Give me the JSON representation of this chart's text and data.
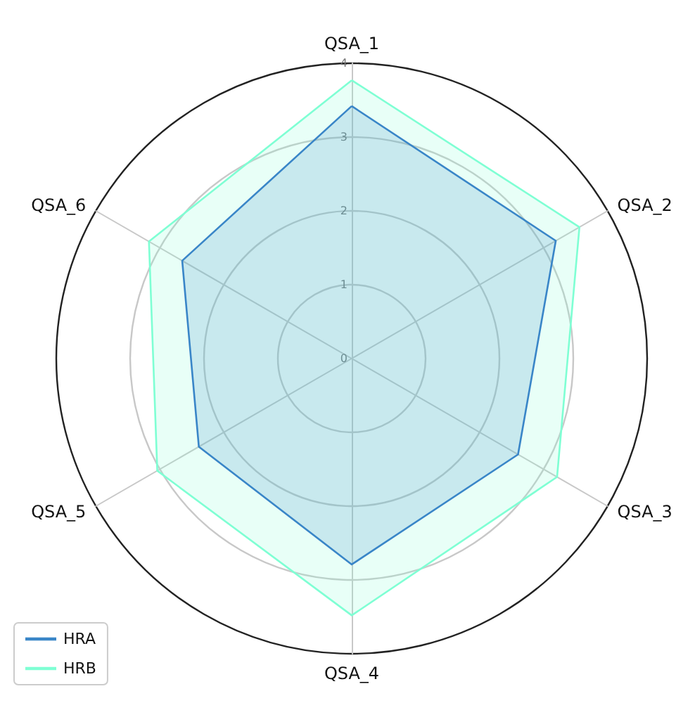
{
  "chart_data": {
    "type": "radar",
    "categories": [
      "QSA_1",
      "QSA_2",
      "QSA_3",
      "QSA_4",
      "QSA_5",
      "QSA_6"
    ],
    "series": [
      {
        "name": "HRA",
        "color": "#3a86c8",
        "values": [
          3.42,
          3.19,
          2.6,
          2.79,
          2.39,
          2.65
        ]
      },
      {
        "name": "HRB",
        "color": "#7fffd4",
        "values": [
          3.77,
          3.56,
          3.21,
          3.48,
          3.04,
          3.17
        ]
      }
    ],
    "ylim": [
      0,
      4
    ],
    "yticks": [
      0,
      1,
      2,
      3,
      4
    ],
    "grid": true,
    "legend": "bottom left",
    "marker": "none"
  }
}
